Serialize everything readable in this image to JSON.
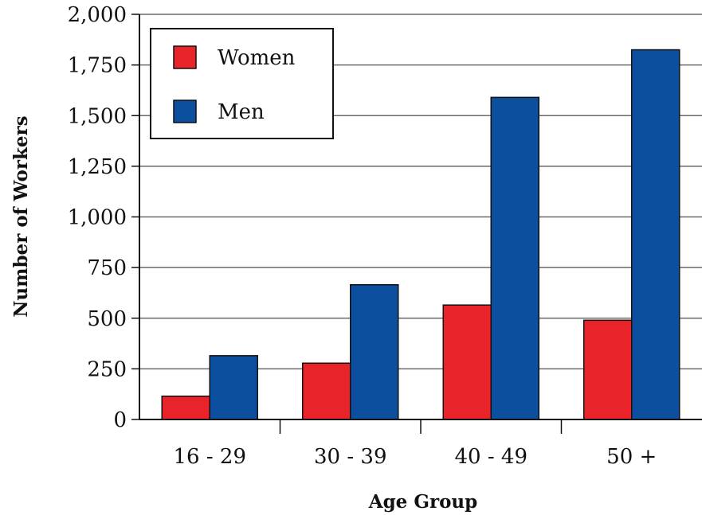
{
  "chart_data": {
    "type": "bar",
    "title": "",
    "xlabel": "Age Group",
    "ylabel": "Number of Workers",
    "categories": [
      "16 - 29",
      "30 - 39",
      "40 - 49",
      "50 +"
    ],
    "series": [
      {
        "name": "Women",
        "color": "#e8232a",
        "values": [
          115,
          278,
          565,
          490
        ]
      },
      {
        "name": "Men",
        "color": "#0c4f9e",
        "values": [
          315,
          665,
          1590,
          1825
        ]
      }
    ],
    "ylim": [
      0,
      2000
    ],
    "yticks": [
      0,
      250,
      500,
      750,
      1000,
      1250,
      1500,
      1750,
      2000
    ],
    "ytick_labels": [
      "0",
      "250",
      "500",
      "750",
      "1,000",
      "1,250",
      "1,500",
      "1,750",
      "2,000"
    ],
    "grid": true,
    "legend_position": "top-left"
  }
}
